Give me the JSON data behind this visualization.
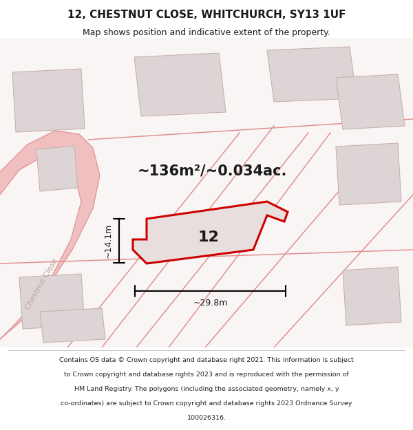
{
  "title_line1": "12, CHESTNUT CLOSE, WHITCHURCH, SY13 1UF",
  "title_line2": "Map shows position and indicative extent of the property.",
  "area_text": "~136m²/~0.034ac.",
  "label_number": "12",
  "dim_width": "~29.8m",
  "dim_height": "~14.1m",
  "footer_lines": [
    "Contains OS data © Crown copyright and database right 2021. This information is subject",
    "to Crown copyright and database rights 2023 and is reproduced with the permission of",
    "HM Land Registry. The polygons (including the associated geometry, namely x, y",
    "co-ordinates) are subject to Crown copyright and database rights 2023 Ordnance Survey",
    "100026316."
  ],
  "bg_color": "#ffffff",
  "map_bg": "#faf5f5",
  "road_color": "#f0c0c0",
  "building_fill": "#ddd5d5",
  "building_stroke": "#c8b0b0",
  "highlight_fill": "#e8dede",
  "highlight_stroke": "#cc0000",
  "road_stroke": "#e09090",
  "dim_color": "#000000",
  "text_color": "#1a1a1a",
  "chestnut_close_label": "Chestnut Close",
  "road_label_color": "#c0a0a0",
  "footer_color": "#222222",
  "title_fontsize": 11,
  "subtitle_fontsize": 9,
  "area_fontsize": 15,
  "label_fontsize": 16,
  "dim_fontsize": 9,
  "footer_fontsize": 6.8,
  "road_label_fontsize": 8
}
